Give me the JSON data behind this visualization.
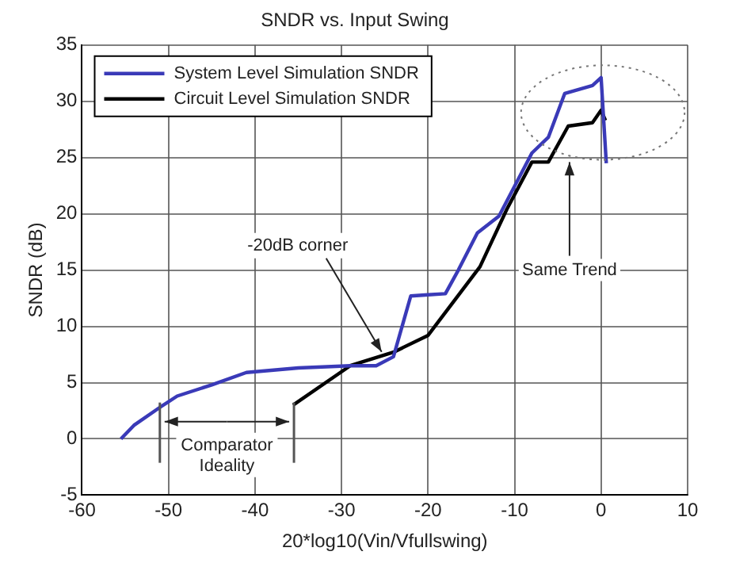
{
  "chart_data": {
    "type": "line",
    "title": "SNDR vs. Input Swing",
    "xlabel": "20*log10(Vin/Vfullswing)",
    "ylabel": "SNDR (dB)",
    "xlim": [
      -60,
      10
    ],
    "xticks": [
      -60,
      -50,
      -40,
      -30,
      -20,
      -10,
      0,
      10
    ],
    "ylim": [
      -5,
      35
    ],
    "yticks": [
      -5,
      0,
      5,
      10,
      15,
      20,
      25,
      30,
      35
    ],
    "grid": true,
    "legend": "top left",
    "marker": "none",
    "line_style": "solid",
    "series": [
      {
        "name": "System Level Simulation SNDR",
        "color": "#3a3ab8",
        "x": [
          -55.5,
          -54,
          -51,
          -49,
          -45,
          -41,
          -35,
          -29,
          -26,
          -24,
          -22,
          -20,
          -18,
          -16.5,
          -14.3,
          -11.8,
          -8,
          -6.1,
          -4.2,
          -1,
          0,
          0.6
        ],
        "values": [
          0,
          1.2,
          2.8,
          3.8,
          4.8,
          5.9,
          6.3,
          6.5,
          6.5,
          7.3,
          12.7,
          12.8,
          12.9,
          15,
          18.3,
          19.8,
          25.4,
          26.8,
          30.7,
          31.4,
          32.1,
          24.5
        ]
      },
      {
        "name": "Circuit Level Simulation SNDR",
        "color": "#000000",
        "x": [
          -35.6,
          -29,
          -24,
          -20,
          -14,
          -10.9,
          -8,
          -6.1,
          -3.8,
          -1,
          0,
          0.5
        ],
        "values": [
          3,
          6.5,
          7.7,
          9.2,
          15.3,
          20.4,
          24.6,
          24.6,
          27.8,
          28.1,
          29.2,
          28.3
        ]
      }
    ],
    "annotations": [
      {
        "text": "-20dB corner",
        "x": -25,
        "y": 7.3
      },
      "Same Trend",
      "Comparator Ideality"
    ],
    "ref_lines": [
      {
        "axis": "x",
        "value": -51,
        "color": "#555555"
      },
      {
        "axis": "x",
        "value": -35.5,
        "color": "#555555"
      }
    ]
  }
}
